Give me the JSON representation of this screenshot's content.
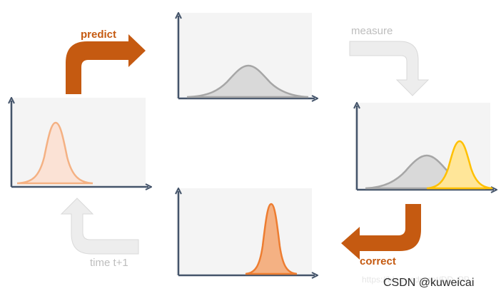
{
  "diagram": {
    "title": "",
    "steps": {
      "predict": "predict",
      "measure": "measure",
      "correct": "correct",
      "time": "time t+1"
    },
    "nodes": [
      {
        "id": "prior",
        "description": "wide orange gaussian"
      },
      {
        "id": "predicted",
        "description": "wider gray gaussian"
      },
      {
        "id": "measurement",
        "description": "gray prediction and yellow measurement gaussians"
      },
      {
        "id": "posterior",
        "description": "narrow orange gaussian"
      }
    ]
  },
  "watermark": {
    "url": "https://blog.csdn.net/DD_PP",
    "text": "CSDN @kuweicai"
  },
  "colors": {
    "accent": "#c55a11",
    "axis": "#44546a",
    "gray_curve": "#a6a6a6",
    "yellow_curve": "#ffc000",
    "orange_curve": "#ed7d31",
    "faded_arrow": "#ededed"
  }
}
